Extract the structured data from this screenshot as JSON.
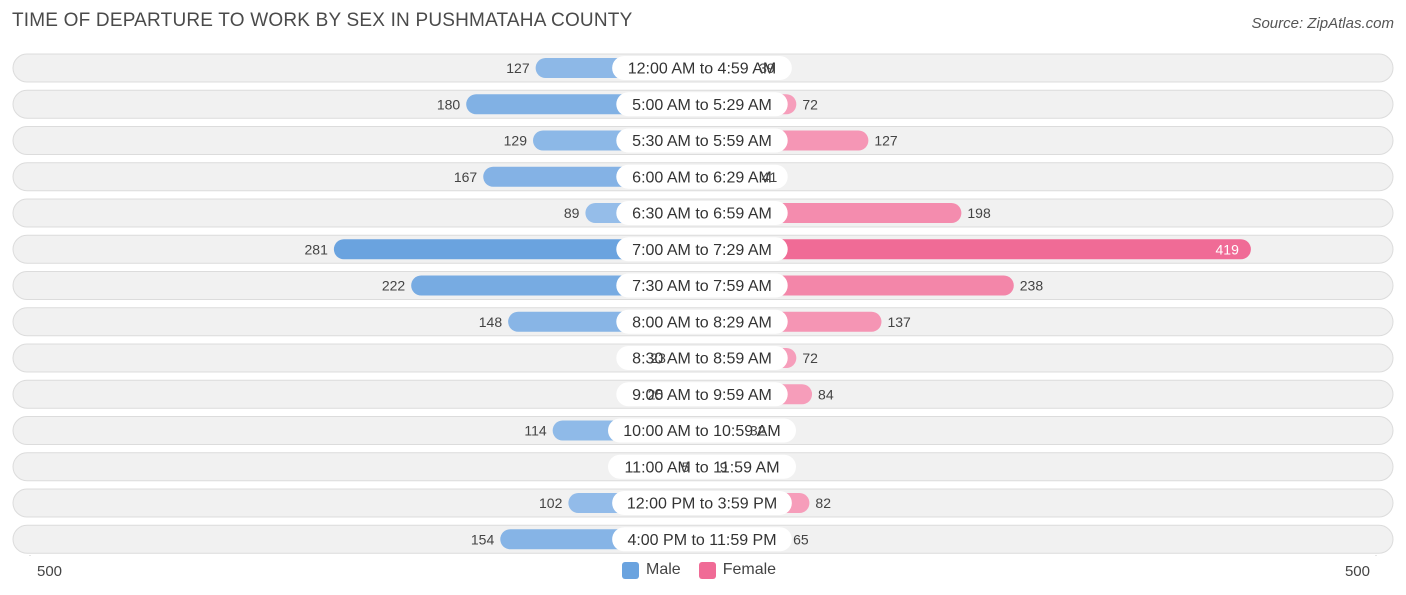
{
  "title": "TIME OF DEPARTURE TO WORK BY SEX IN PUSHMATAHA COUNTY",
  "source": "Source: ZipAtlas.com",
  "colors": {
    "male": "#6aa3df",
    "male_light": "#a9c9ee",
    "female": "#f06b96",
    "female_light": "#f7a9c3",
    "row_bg": "#f1f1f1",
    "row_border": "#dcdcdc"
  },
  "chart_data": {
    "type": "bar",
    "orientation": "horizontal-diverging",
    "categories": [
      "12:00 AM to 4:59 AM",
      "5:00 AM to 5:29 AM",
      "5:30 AM to 5:59 AM",
      "6:00 AM to 6:29 AM",
      "6:30 AM to 6:59 AM",
      "7:00 AM to 7:29 AM",
      "7:30 AM to 7:59 AM",
      "8:00 AM to 8:29 AM",
      "8:30 AM to 8:59 AM",
      "9:00 AM to 9:59 AM",
      "10:00 AM to 10:59 AM",
      "11:00 AM to 11:59 AM",
      "12:00 PM to 3:59 PM",
      "4:00 PM to 11:59 PM"
    ],
    "series": [
      {
        "name": "Male",
        "values": [
          127,
          180,
          129,
          167,
          89,
          281,
          222,
          148,
          23,
          25,
          114,
          5,
          102,
          154
        ]
      },
      {
        "name": "Female",
        "values": [
          39,
          72,
          127,
          41,
          198,
          419,
          238,
          137,
          72,
          84,
          32,
          9,
          82,
          65
        ]
      }
    ],
    "axis": {
      "left_label": "500",
      "right_label": "500",
      "max": 500
    },
    "legend": {
      "position": "bottom-center"
    }
  }
}
